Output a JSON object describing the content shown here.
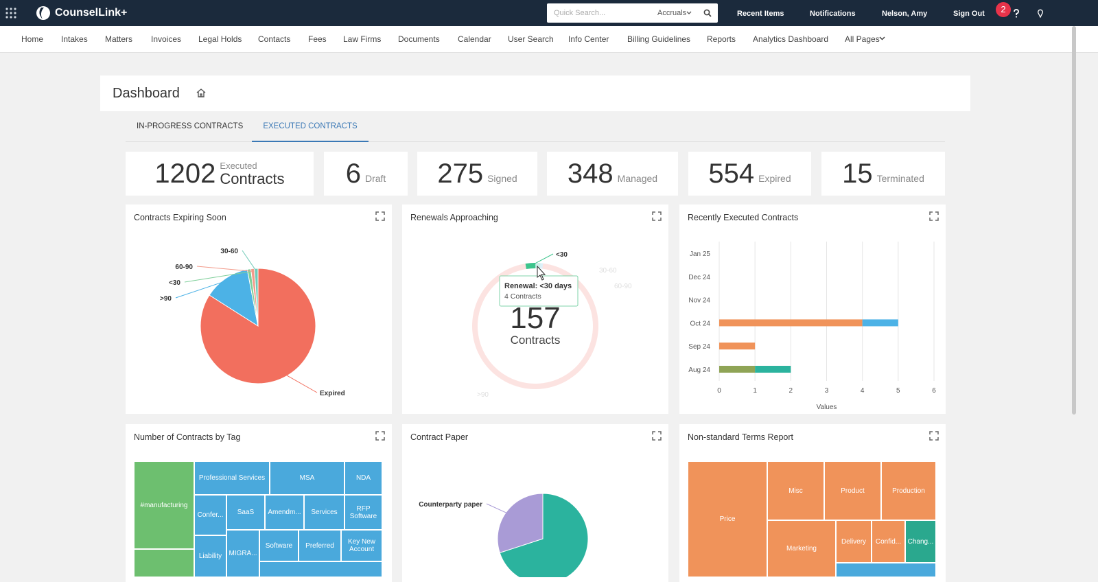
{
  "topbar": {
    "brand": "CounselLink+",
    "search_placeholder": "Quick Search...",
    "search_scope": "Accruals",
    "links": [
      "Recent Items",
      "Notifications",
      "Nelson, Amy",
      "Sign Out"
    ],
    "badge": 2
  },
  "nav": [
    "Home",
    "Intakes",
    "Matters",
    "Invoices",
    "Legal Holds",
    "Contacts",
    "Fees",
    "Law Firms",
    "Documents",
    "Calendar",
    "User Search",
    "Info Center",
    "Billing Guidelines",
    "Reports",
    "Analytics Dashboard",
    "All Pages"
  ],
  "page": {
    "title": "Dashboard",
    "tabs": [
      "IN-PROGRESS CONTRACTS",
      "EXECUTED CONTRACTS"
    ],
    "active_tab": 1
  },
  "kpis": [
    {
      "value": 1202,
      "caption": "Executed",
      "label": "Contracts"
    },
    {
      "value": 6,
      "label": "Draft"
    },
    {
      "value": 275,
      "label": "Signed"
    },
    {
      "value": 348,
      "label": "Managed"
    },
    {
      "value": 554,
      "label": "Expired"
    },
    {
      "value": 15,
      "label": "Terminated"
    }
  ],
  "widgets": [
    {
      "title": "Contracts Expiring Soon",
      "chart": {
        "type": "pie",
        "categories": [
          "Expired",
          ">90",
          "<30",
          "60-90",
          "30-60"
        ],
        "values": [
          84,
          13,
          1,
          1,
          1
        ],
        "colors": [
          "#f26f5e",
          "#4cb2e6",
          "#7fcf9a",
          "#f29a8a",
          "#6fcab8"
        ]
      }
    },
    {
      "title": "Renewals Approaching",
      "chart": {
        "type": "donut",
        "categories": [
          "<30",
          "30-60",
          "60-90",
          ">90"
        ],
        "values": [
          4,
          2,
          1,
          150
        ],
        "colors": [
          "#3cc48c",
          "#6fd0c0",
          "#9fd4ee",
          "#f5b0aa"
        ],
        "center_value": 157,
        "center_label": "Contracts",
        "tooltip": {
          "title": "Renewal: <30 days",
          "text": "4 Contracts"
        }
      }
    },
    {
      "title": "Recently Executed Contracts",
      "chart": {
        "type": "hbar_stacked",
        "categories": [
          "Jan 25",
          "Dec 24",
          "Nov 24",
          "Oct 24",
          "Sep 24",
          "Aug 24"
        ],
        "series": [
          {
            "color": "#f0935a",
            "values": [
              0,
              0,
              0,
              4,
              1,
              0
            ]
          },
          {
            "color": "#4cb2e6",
            "values": [
              0,
              0,
              0,
              1,
              0,
              0
            ]
          },
          {
            "color": "#8fa456",
            "values": [
              0,
              0,
              0,
              0,
              0,
              1
            ]
          },
          {
            "color": "#2bb39e",
            "values": [
              0,
              0,
              0,
              0,
              0,
              1
            ]
          }
        ],
        "xlim": [
          0,
          6
        ],
        "xticks": [
          0,
          1,
          2,
          3,
          4,
          5,
          6
        ],
        "xlabel": "Values",
        "grid": true
      }
    },
    {
      "title": "Number of Contracts by Tag",
      "chart": {
        "type": "treemap",
        "labels": [
          "#manufacturing",
          "Professional Services",
          "MSA",
          "NDA",
          "Confer...",
          "SaaS",
          "Amendm...",
          "Services",
          "RFP Software",
          "Liability",
          "MIGRA...",
          "Software",
          "Preferred",
          "Key New Account"
        ],
        "colors": [
          "#6dbf6f",
          "#4aa9dc",
          "#4aa9dc",
          "#4aa9dc",
          "#4aa9dc",
          "#4aa9dc",
          "#4aa9dc",
          "#4aa9dc",
          "#4aa9dc",
          "#4aa9dc",
          "#4aa9dc",
          "#4aa9dc",
          "#4aa9dc",
          "#4aa9dc"
        ]
      }
    },
    {
      "title": "Contract Paper",
      "chart": {
        "type": "pie",
        "categories": [
          null,
          "Counterparty paper"
        ],
        "values": [
          70,
          30
        ],
        "colors": [
          "#2bb39e",
          "#a99bd6"
        ]
      }
    },
    {
      "title": "Non-standard Terms Report",
      "chart": {
        "type": "treemap",
        "labels": [
          "Price",
          "Misc",
          "Product",
          "Production",
          "Marketing",
          "Delivery",
          "Confid...",
          "Chang..."
        ],
        "colors": [
          "#f0935a",
          "#f0935a",
          "#f0935a",
          "#f0935a",
          "#f0935a",
          "#f0935a",
          "#f0935a",
          "#2aa88e"
        ]
      }
    }
  ]
}
